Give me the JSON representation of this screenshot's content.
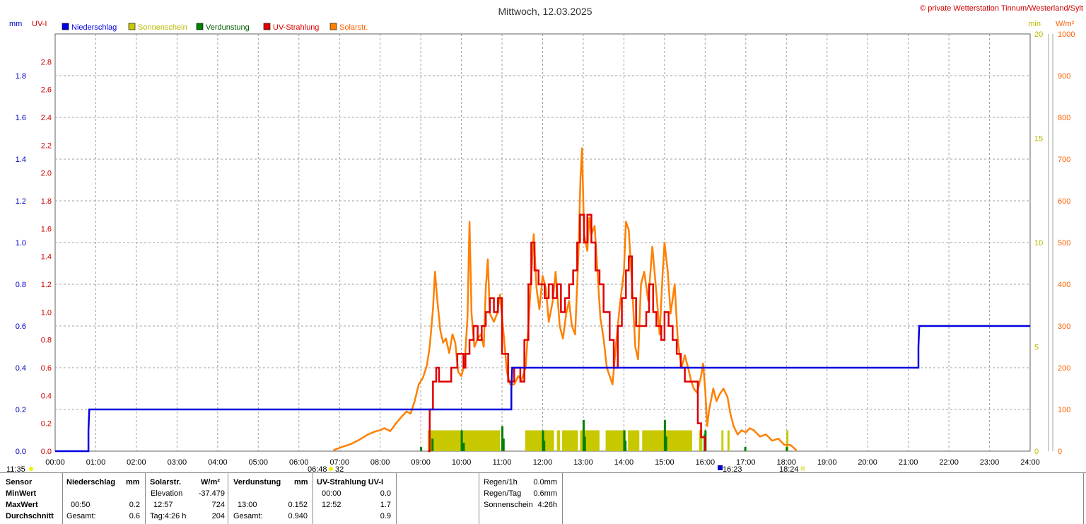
{
  "title": "Mittwoch, 12.03.2025",
  "copyright": "© private Wetterstation Tinnum/Westerland/Sylt",
  "axis_units": {
    "mm": "mm",
    "uvi": "UV-I",
    "min": "min",
    "wm2": "W/m²"
  },
  "colors": {
    "rain": "#0000e0",
    "sun": "#c8c800",
    "evap": "#008000",
    "uv": "#e00000",
    "solar": "#ff8000",
    "grid": "#a0a0a0"
  },
  "legend": [
    {
      "label": "Niederschlag",
      "color": "#0000e0",
      "text_color": "#0000e0"
    },
    {
      "label": "Sonnenschein",
      "color": "#c8c800",
      "text_color": "#b8b800"
    },
    {
      "label": "Verdunstung",
      "color": "#008000",
      "text_color": "#006000"
    },
    {
      "label": "UV-Strahlung",
      "color": "#e00000",
      "text_color": "#e00000"
    },
    {
      "label": "Solarstr.",
      "color": "#ff8000",
      "text_color": "#ff6000"
    }
  ],
  "markers": {
    "daylength": "11:35",
    "sunrise": "06:48",
    "sunrise_val": "32",
    "dst_time": "16:23",
    "sunset": "18:24"
  },
  "chart_data": {
    "type": "line",
    "title": "Mittwoch, 12.03.2025",
    "x_unit": "time of day (hours)",
    "xlim": [
      0,
      24
    ],
    "x_tick_labels": [
      "00:00",
      "01:00",
      "02:00",
      "03:00",
      "04:00",
      "05:00",
      "06:00",
      "07:00",
      "08:00",
      "09:00",
      "10:00",
      "11:00",
      "12:00",
      "13:00",
      "14:00",
      "15:00",
      "16:00",
      "17:00",
      "18:00",
      "19:00",
      "20:00",
      "21:00",
      "22:00",
      "23:00",
      "24:00"
    ],
    "axes": {
      "mm": {
        "ylim": [
          0,
          2
        ],
        "ticks": [
          "0.0",
          "0.2",
          "0.4",
          "0.6",
          "0.8",
          "1.0",
          "1.2",
          "1.4",
          "1.6",
          "1.8"
        ]
      },
      "uvi": {
        "ylim": [
          0,
          3
        ],
        "ticks": [
          "0.0",
          "0.2",
          "0.4",
          "0.6",
          "0.8",
          "1.0",
          "1.2",
          "1.4",
          "1.6",
          "1.8",
          "2.0",
          "2.2",
          "2.4",
          "2.6",
          "2.8"
        ]
      },
      "min": {
        "ylim": [
          0,
          20
        ],
        "ticks": [
          "0",
          "5",
          "10",
          "15",
          "20"
        ]
      },
      "wm2": {
        "ylim": [
          0,
          1000
        ],
        "ticks": [
          "0",
          "100",
          "200",
          "300",
          "400",
          "500",
          "600",
          "700",
          "800",
          "900",
          "1000"
        ]
      }
    },
    "grid": true,
    "series": [
      {
        "name": "Niederschlag",
        "axis": "mm",
        "shape": "step",
        "points": [
          [
            0,
            0
          ],
          [
            0.82,
            0
          ],
          [
            0.82,
            0.1
          ],
          [
            0.84,
            0.2
          ],
          [
            11.23,
            0.2
          ],
          [
            11.23,
            0.3
          ],
          [
            11.25,
            0.4
          ],
          [
            21.25,
            0.4
          ],
          [
            21.25,
            0.5
          ],
          [
            21.27,
            0.6
          ],
          [
            24,
            0.6
          ]
        ]
      },
      {
        "name": "Solarstr.",
        "axis": "wm2",
        "points": [
          [
            6.85,
            2
          ],
          [
            7.0,
            8
          ],
          [
            7.3,
            18
          ],
          [
            7.5,
            28
          ],
          [
            7.7,
            40
          ],
          [
            7.9,
            48
          ],
          [
            8.0,
            50
          ],
          [
            8.1,
            55
          ],
          [
            8.25,
            48
          ],
          [
            8.4,
            68
          ],
          [
            8.55,
            85
          ],
          [
            8.65,
            95
          ],
          [
            8.75,
            90
          ],
          [
            8.85,
            120
          ],
          [
            8.95,
            160
          ],
          [
            9.05,
            175
          ],
          [
            9.15,
            205
          ],
          [
            9.22,
            250
          ],
          [
            9.3,
            340
          ],
          [
            9.35,
            430
          ],
          [
            9.4,
            370
          ],
          [
            9.48,
            290
          ],
          [
            9.55,
            260
          ],
          [
            9.62,
            270
          ],
          [
            9.7,
            235
          ],
          [
            9.78,
            280
          ],
          [
            9.85,
            260
          ],
          [
            9.92,
            190
          ],
          [
            10.0,
            180
          ],
          [
            10.08,
            210
          ],
          [
            10.15,
            320
          ],
          [
            10.2,
            550
          ],
          [
            10.25,
            330
          ],
          [
            10.32,
            250
          ],
          [
            10.4,
            270
          ],
          [
            10.48,
            280
          ],
          [
            10.55,
            250
          ],
          [
            10.6,
            390
          ],
          [
            10.65,
            460
          ],
          [
            10.7,
            330
          ],
          [
            10.8,
            310
          ],
          [
            10.88,
            330
          ],
          [
            10.95,
            375
          ],
          [
            11.05,
            270
          ],
          [
            11.12,
            190
          ],
          [
            11.2,
            160
          ],
          [
            11.3,
            160
          ],
          [
            11.4,
            180
          ],
          [
            11.48,
            170
          ],
          [
            11.58,
            200
          ],
          [
            11.65,
            300
          ],
          [
            11.72,
            420
          ],
          [
            11.78,
            520
          ],
          [
            11.85,
            390
          ],
          [
            11.92,
            340
          ],
          [
            12.0,
            420
          ],
          [
            12.08,
            390
          ],
          [
            12.15,
            310
          ],
          [
            12.25,
            360
          ],
          [
            12.32,
            430
          ],
          [
            12.42,
            300
          ],
          [
            12.5,
            270
          ],
          [
            12.58,
            330
          ],
          [
            12.65,
            360
          ],
          [
            12.72,
            300
          ],
          [
            12.8,
            280
          ],
          [
            12.88,
            470
          ],
          [
            12.93,
            650
          ],
          [
            12.97,
            726
          ],
          [
            13.02,
            520
          ],
          [
            13.1,
            480
          ],
          [
            13.15,
            560
          ],
          [
            13.2,
            520
          ],
          [
            13.28,
            540
          ],
          [
            13.35,
            430
          ],
          [
            13.42,
            320
          ],
          [
            13.5,
            270
          ],
          [
            13.58,
            200
          ],
          [
            13.65,
            180
          ],
          [
            13.72,
            160
          ],
          [
            13.8,
            250
          ],
          [
            13.9,
            350
          ],
          [
            14.0,
            430
          ],
          [
            14.05,
            550
          ],
          [
            14.12,
            530
          ],
          [
            14.2,
            400
          ],
          [
            14.28,
            250
          ],
          [
            14.35,
            220
          ],
          [
            14.42,
            400
          ],
          [
            14.5,
            430
          ],
          [
            14.6,
            360
          ],
          [
            14.7,
            490
          ],
          [
            14.8,
            380
          ],
          [
            14.88,
            280
          ],
          [
            14.95,
            420
          ],
          [
            15.0,
            500
          ],
          [
            15.08,
            430
          ],
          [
            15.15,
            330
          ],
          [
            15.25,
            400
          ],
          [
            15.33,
            260
          ],
          [
            15.42,
            200
          ],
          [
            15.5,
            230
          ],
          [
            15.58,
            200
          ],
          [
            15.65,
            170
          ],
          [
            15.72,
            150
          ],
          [
            15.8,
            140
          ],
          [
            15.9,
            180
          ],
          [
            15.95,
            210
          ],
          [
            16.0,
            150
          ],
          [
            16.05,
            60
          ],
          [
            16.1,
            100
          ],
          [
            16.2,
            150
          ],
          [
            16.28,
            120
          ],
          [
            16.35,
            135
          ],
          [
            16.45,
            150
          ],
          [
            16.55,
            130
          ],
          [
            16.62,
            90
          ],
          [
            16.7,
            60
          ],
          [
            16.8,
            40
          ],
          [
            16.9,
            50
          ],
          [
            17.0,
            45
          ],
          [
            17.1,
            55
          ],
          [
            17.2,
            50
          ],
          [
            17.35,
            35
          ],
          [
            17.5,
            40
          ],
          [
            17.65,
            25
          ],
          [
            17.8,
            30
          ],
          [
            17.95,
            15
          ],
          [
            18.1,
            15
          ],
          [
            18.25,
            2
          ]
        ]
      },
      {
        "name": "UV-Strahlung",
        "axis": "uvi",
        "shape": "step",
        "points": [
          [
            9.18,
            0
          ],
          [
            9.22,
            0.3
          ],
          [
            9.3,
            0.5
          ],
          [
            9.38,
            0.6
          ],
          [
            9.45,
            0.5
          ],
          [
            9.7,
            0.5
          ],
          [
            9.75,
            0.6
          ],
          [
            9.9,
            0.7
          ],
          [
            10.05,
            0.6
          ],
          [
            10.1,
            0.7
          ],
          [
            10.2,
            0.8
          ],
          [
            10.3,
            0.9
          ],
          [
            10.4,
            0.8
          ],
          [
            10.5,
            0.9
          ],
          [
            10.6,
            1.0
          ],
          [
            10.7,
            1.1
          ],
          [
            10.8,
            1.0
          ],
          [
            10.9,
            1.1
          ],
          [
            11.0,
            0.7
          ],
          [
            11.15,
            0.5
          ],
          [
            11.3,
            0.6
          ],
          [
            11.45,
            0.5
          ],
          [
            11.55,
            0.8
          ],
          [
            11.65,
            1.2
          ],
          [
            11.72,
            1.5
          ],
          [
            11.8,
            1.3
          ],
          [
            11.9,
            1.2
          ],
          [
            12.05,
            1.1
          ],
          [
            12.15,
            1.2
          ],
          [
            12.25,
            1.1
          ],
          [
            12.35,
            1.2
          ],
          [
            12.45,
            1.0
          ],
          [
            12.55,
            1.1
          ],
          [
            12.65,
            1.2
          ],
          [
            12.75,
            1.3
          ],
          [
            12.85,
            1.5
          ],
          [
            12.92,
            1.7
          ],
          [
            13.02,
            1.5
          ],
          [
            13.1,
            1.7
          ],
          [
            13.2,
            1.5
          ],
          [
            13.3,
            1.3
          ],
          [
            13.4,
            1.2
          ],
          [
            13.5,
            1.0
          ],
          [
            13.65,
            0.8
          ],
          [
            13.75,
            0.6
          ],
          [
            13.85,
            0.9
          ],
          [
            13.95,
            1.1
          ],
          [
            14.05,
            1.3
          ],
          [
            14.12,
            1.4
          ],
          [
            14.2,
            1.1
          ],
          [
            14.3,
            0.9
          ],
          [
            14.45,
            0.9
          ],
          [
            14.55,
            1.0
          ],
          [
            14.62,
            1.2
          ],
          [
            14.72,
            1.0
          ],
          [
            14.8,
            0.9
          ],
          [
            14.92,
            0.8
          ],
          [
            15.0,
            1.0
          ],
          [
            15.1,
            0.9
          ],
          [
            15.2,
            0.8
          ],
          [
            15.3,
            0.7
          ],
          [
            15.4,
            0.6
          ],
          [
            15.5,
            0.5
          ],
          [
            15.7,
            0.5
          ],
          [
            15.82,
            0.2
          ],
          [
            15.9,
            0.1
          ],
          [
            16.0,
            0
          ]
        ]
      },
      {
        "name": "Sonnenschein",
        "axis": "min",
        "shape": "bars",
        "intervals": [
          [
            9.17,
            10.0
          ],
          [
            10.02,
            10.95
          ],
          [
            11.57,
            12.28
          ],
          [
            12.35,
            12.43
          ],
          [
            12.48,
            12.87
          ],
          [
            12.92,
            13.4
          ],
          [
            13.55,
            14.05
          ],
          [
            14.1,
            14.38
          ],
          [
            14.45,
            15.68
          ],
          [
            15.85,
            15.93
          ],
          [
            16.4,
            16.45
          ],
          [
            16.55,
            16.6
          ],
          [
            18.0,
            18.05
          ]
        ],
        "height": 1
      },
      {
        "name": "Verdunstung",
        "axis": "min",
        "shape": "bars",
        "bars": [
          [
            9.0,
            0.2
          ],
          [
            9.28,
            0.6
          ],
          [
            10.0,
            1.0
          ],
          [
            10.05,
            0.4
          ],
          [
            11.0,
            1.2
          ],
          [
            11.03,
            0.6
          ],
          [
            12.0,
            1.0
          ],
          [
            12.03,
            0.5
          ],
          [
            13.0,
            1.5
          ],
          [
            13.03,
            0.7
          ],
          [
            14.0,
            1.0
          ],
          [
            14.03,
            0.5
          ],
          [
            15.0,
            1.5
          ],
          [
            15.03,
            0.7
          ],
          [
            15.98,
            0.8
          ],
          [
            16.0,
            1.0
          ],
          [
            16.98,
            0.2
          ],
          [
            18.0,
            0.2
          ]
        ]
      }
    ]
  },
  "stats": {
    "headers": {
      "sensor": "Sensor",
      "rain": "Niederschlag",
      "rain_unit": "mm",
      "solar": "Solarstr.",
      "solar_unit": "W/m²",
      "evap": "Verdunstung",
      "evap_unit": "mm",
      "uv": "UV-Strahlung UV-I"
    },
    "rows": [
      {
        "label": "MinWert",
        "rain_time": "",
        "rain_val": "",
        "solar_time": "Elevation",
        "solar_val": "-37.479",
        "evap_time": "",
        "evap_val": "",
        "uv_time": "00:00",
        "uv_val": "0.0"
      },
      {
        "label": "MaxWert",
        "rain_time": "00:50",
        "rain_val": "0.2",
        "solar_time": "12:57",
        "solar_val": "724",
        "evap_time": "13:00",
        "evap_val": "0.152",
        "uv_time": "12:52",
        "uv_val": "1.7"
      },
      {
        "label": "Durchschnitt",
        "rain_time": "Gesamt:",
        "rain_val": "0.6",
        "solar_time": "Tag:4:26 h",
        "solar_val": "204",
        "evap_time": "Gesamt:",
        "evap_val": "0.940",
        "uv_time": "",
        "uv_val": "0.9"
      }
    ],
    "summary": [
      {
        "label": "Regen/1h",
        "value": "0.0mm"
      },
      {
        "label": "Regen/Tag",
        "value": "0.6mm"
      },
      {
        "label": "Sonnenschein",
        "value": "4:26h"
      }
    ]
  }
}
